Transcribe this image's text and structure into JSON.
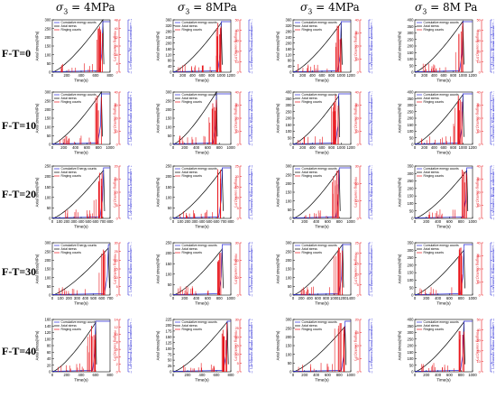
{
  "column_headers": [
    {
      "symbol": "σ",
      "sub": "3",
      "value": "= 4MPa"
    },
    {
      "symbol": "σ",
      "sub": "3",
      "value": "= 8MPa"
    },
    {
      "symbol": "σ",
      "sub": "3",
      "value": "= 4MPa"
    },
    {
      "symbol": "σ",
      "sub": "3",
      "value": "= 8M Pa"
    }
  ],
  "row_labels": [
    "F-T=0",
    "F-T=10",
    "F-T=20",
    "F-T=30",
    "F-T=40"
  ],
  "colors": {
    "stress": "#000000",
    "ringing": "#e8141a",
    "energy": "#2a2ad8",
    "axis": "#000000"
  },
  "legend_labels": {
    "energy": "Cumulative energy counts",
    "energy_alt": "Cumulative Energy counts",
    "stress": "Axial stress",
    "ringing": "Ringing counts"
  },
  "axis_labels": {
    "left": "Axial stress(MPa)",
    "right_red": "Ringing counts(10⁴)",
    "right_blue": "Cumulative energy counts(10⁵)",
    "x": "Time(s)"
  },
  "chart_data": [
    {
      "row": 0,
      "col": 0,
      "type": "line",
      "xticks": [
        "0",
        "200",
        "400",
        "600",
        "800"
      ],
      "xmax": 800,
      "ylim": [
        0,
        300
      ],
      "yticks": [
        "0",
        "50",
        "100",
        "150",
        "200",
        "250",
        "300"
      ],
      "peak_time": 700,
      "peak_stress": 300,
      "red_ticks": [
        "0",
        "8",
        "16",
        "24",
        "32",
        "40",
        "48"
      ],
      "blue_ticks": [
        "0",
        "100",
        "200",
        "300",
        "400",
        "500"
      ],
      "legend_pos": "top-left",
      "legend_variant": "energy"
    },
    {
      "row": 0,
      "col": 1,
      "type": "line",
      "xticks": [
        "0",
        "200",
        "400",
        "600",
        "800",
        "1000",
        "1200"
      ],
      "xmax": 1200,
      "ylim": [
        0,
        360
      ],
      "yticks": [
        "0",
        "40",
        "80",
        "120",
        "160",
        "200",
        "240",
        "280",
        "320",
        "360"
      ],
      "peak_time": 1000,
      "peak_stress": 340,
      "red_ticks": [
        "0",
        "10",
        "20",
        "30",
        "40",
        "50"
      ],
      "blue_ticks": [
        "0",
        "200",
        "400",
        "600",
        "800",
        "1000"
      ],
      "legend_pos": "top-left",
      "legend_variant": "energy"
    },
    {
      "row": 0,
      "col": 2,
      "type": "line",
      "xticks": [
        "0",
        "200",
        "400",
        "600",
        "800",
        "1000",
        "1200"
      ],
      "xmax": 1200,
      "ylim": [
        0,
        360
      ],
      "yticks": [
        "0",
        "40",
        "80",
        "120",
        "160",
        "200",
        "240",
        "280",
        "320",
        "360"
      ],
      "peak_time": 1000,
      "peak_stress": 340,
      "red_ticks": [
        "0",
        "10",
        "20",
        "30",
        "40"
      ],
      "blue_ticks": [
        "0",
        "200",
        "400",
        "600",
        "800",
        "1000",
        "1200"
      ],
      "legend_pos": "top-left",
      "legend_variant": "energy"
    },
    {
      "row": 0,
      "col": 3,
      "type": "line",
      "xticks": [
        "0",
        "200",
        "400",
        "600",
        "800",
        "1000",
        "1200"
      ],
      "xmax": 1200,
      "ylim": [
        0,
        400
      ],
      "yticks": [
        "0",
        "50",
        "100",
        "150",
        "200",
        "250",
        "300",
        "350",
        "400"
      ],
      "peak_time": 1000,
      "peak_stress": 390,
      "red_ticks": [
        "0",
        "10",
        "20",
        "30",
        "40",
        "50"
      ],
      "blue_ticks": [
        "0",
        "200",
        "400",
        "600",
        "800",
        "1000",
        "1200",
        "1400"
      ],
      "legend_pos": "top-left",
      "legend_variant": "energy"
    },
    {
      "row": 1,
      "col": 0,
      "type": "line",
      "xticks": [
        "0",
        "200",
        "400",
        "600",
        "800",
        "1000"
      ],
      "xmax": 1000,
      "ylim": [
        0,
        300
      ],
      "yticks": [
        "0",
        "50",
        "100",
        "150",
        "200",
        "250",
        "300"
      ],
      "peak_time": 850,
      "peak_stress": 300,
      "red_ticks": [
        "0",
        "10",
        "20",
        "30",
        "40"
      ],
      "blue_ticks": [
        "0",
        "50",
        "100",
        "150",
        "200",
        "250",
        "300",
        "350",
        "400",
        "450"
      ],
      "legend_pos": "top-left",
      "legend_variant": "energy"
    },
    {
      "row": 1,
      "col": 1,
      "type": "line",
      "xticks": [
        "0",
        "200",
        "400",
        "600",
        "800",
        "1000"
      ],
      "xmax": 1000,
      "ylim": [
        0,
        300
      ],
      "yticks": [
        "0",
        "50",
        "100",
        "150",
        "200",
        "250",
        "300"
      ],
      "peak_time": 750,
      "peak_stress": 300,
      "red_ticks": [
        "0",
        "10",
        "20",
        "30",
        "40"
      ],
      "blue_ticks": [
        "0",
        "100",
        "200",
        "300",
        "400",
        "500",
        "600"
      ],
      "legend_pos": "top-left",
      "legend_variant": "energy"
    },
    {
      "row": 1,
      "col": 2,
      "type": "line",
      "xticks": [
        "0",
        "200",
        "400",
        "600",
        "800",
        "1000",
        "1200"
      ],
      "xmax": 1200,
      "ylim": [
        0,
        400
      ],
      "yticks": [
        "0",
        "50",
        "100",
        "150",
        "200",
        "250",
        "300",
        "350",
        "400"
      ],
      "peak_time": 950,
      "peak_stress": 370,
      "red_ticks": [
        "0",
        "10",
        "20",
        "30",
        "40"
      ],
      "blue_ticks": [
        "0",
        "200",
        "400",
        "600",
        "800",
        "1000"
      ],
      "legend_pos": "top-left",
      "legend_variant": "energy"
    },
    {
      "row": 1,
      "col": 3,
      "type": "line",
      "xticks": [
        "0",
        "200",
        "400",
        "600",
        "800",
        "1000",
        "1200"
      ],
      "xmax": 1200,
      "ylim": [
        0,
        400
      ],
      "yticks": [
        "0",
        "50",
        "100",
        "150",
        "200",
        "250",
        "300",
        "350",
        "400"
      ],
      "peak_time": 1000,
      "peak_stress": 380,
      "red_ticks": [
        "0",
        "10",
        "20",
        "30",
        "40"
      ],
      "blue_ticks": [
        "0",
        "200",
        "400",
        "600",
        "800",
        "1000",
        "1200"
      ],
      "legend_pos": "top-left",
      "legend_variant": "energy"
    },
    {
      "row": 2,
      "col": 0,
      "type": "line",
      "xticks": [
        "0",
        "100",
        "200",
        "300",
        "400",
        "500",
        "600",
        "700",
        "800"
      ],
      "xmax": 800,
      "ylim": [
        0,
        250
      ],
      "yticks": [
        "0",
        "50",
        "100",
        "150",
        "200",
        "250"
      ],
      "peak_time": 710,
      "peak_stress": 230,
      "red_ticks": [
        "0",
        "5",
        "10",
        "15",
        "20"
      ],
      "blue_ticks": [
        "0",
        "50",
        "100",
        "150",
        "200",
        "250",
        "300",
        "350",
        "400"
      ],
      "legend_pos": "top-left",
      "legend_variant": "energy_alt"
    },
    {
      "row": 2,
      "col": 1,
      "type": "line",
      "xticks": [
        "0",
        "100",
        "200",
        "300",
        "400",
        "500",
        "600",
        "700",
        "800"
      ],
      "xmax": 800,
      "ylim": [
        0,
        250
      ],
      "yticks": [
        "0",
        "50",
        "100",
        "150",
        "200",
        "250"
      ],
      "peak_time": 680,
      "peak_stress": 235,
      "red_ticks": [
        "0",
        "5",
        "10",
        "15",
        "20",
        "25"
      ],
      "blue_ticks": [
        "0",
        "100",
        "200",
        "300",
        "400",
        "500",
        "600"
      ],
      "legend_pos": "top-left",
      "legend_variant": "energy"
    },
    {
      "row": 2,
      "col": 2,
      "type": "line",
      "xticks": [
        "0",
        "200",
        "400",
        "600",
        "800",
        "1000"
      ],
      "xmax": 1000,
      "ylim": [
        0,
        300
      ],
      "yticks": [
        "0",
        "50",
        "100",
        "150",
        "200",
        "250",
        "300"
      ],
      "peak_time": 800,
      "peak_stress": 280,
      "red_ticks": [
        "0",
        "10",
        "20",
        "30"
      ],
      "blue_ticks": [
        "0",
        "200",
        "400",
        "600",
        "800",
        "1000",
        "1200"
      ],
      "legend_pos": "top-left",
      "legend_variant": "energy"
    },
    {
      "row": 2,
      "col": 3,
      "type": "line",
      "xticks": [
        "0",
        "200",
        "400",
        "600",
        "800",
        "1000"
      ],
      "xmax": 1000,
      "ylim": [
        0,
        350
      ],
      "yticks": [
        "0",
        "50",
        "100",
        "150",
        "200",
        "250",
        "300",
        "350"
      ],
      "peak_time": 900,
      "peak_stress": 320,
      "red_ticks": [
        "0",
        "10",
        "20",
        "30",
        "40"
      ],
      "blue_ticks": [
        "0",
        "200",
        "400",
        "600",
        "800",
        "1000",
        "1200",
        "1400"
      ],
      "legend_pos": "top-left",
      "legend_variant": "energy"
    },
    {
      "row": 3,
      "col": 0,
      "type": "line",
      "xticks": [
        "0",
        "100",
        "200",
        "300",
        "400",
        "500",
        "600",
        "700"
      ],
      "xmax": 700,
      "ylim": [
        0,
        300
      ],
      "yticks": [
        "0",
        "50",
        "100",
        "150",
        "200",
        "250",
        "300"
      ],
      "peak_time": 680,
      "peak_stress": 270,
      "red_ticks": [
        "0",
        "5",
        "10",
        "15",
        "20",
        "25",
        "30"
      ],
      "blue_ticks": [
        "0",
        "30",
        "60",
        "90",
        "120",
        "150",
        "180"
      ],
      "legend_pos": "top-left",
      "legend_variant": "energy_alt"
    },
    {
      "row": 3,
      "col": 1,
      "type": "line",
      "xticks": [
        "0",
        "200",
        "400",
        "600",
        "800",
        "1000"
      ],
      "xmax": 1000,
      "ylim": [
        0,
        250
      ],
      "yticks": [
        "0",
        "50",
        "100",
        "150",
        "200",
        "250"
      ],
      "peak_time": 850,
      "peak_stress": 220,
      "red_ticks": [
        "0",
        "10",
        "20",
        "30"
      ],
      "blue_ticks": [
        "0",
        "100",
        "200",
        "300",
        "400",
        "500",
        "600"
      ],
      "legend_pos": "top-left",
      "legend_variant": "energy"
    },
    {
      "row": 3,
      "col": 2,
      "type": "line",
      "xticks": [
        "0",
        "200",
        "400",
        "600",
        "800",
        "1000",
        "1200",
        "1400"
      ],
      "xmax": 1400,
      "ylim": [
        0,
        300
      ],
      "yticks": [
        "0",
        "50",
        "100",
        "150",
        "200",
        "250",
        "300"
      ],
      "peak_time": 1200,
      "peak_stress": 290,
      "red_ticks": [
        "0",
        "5",
        "10",
        "15",
        "20",
        "25"
      ],
      "blue_ticks": [
        "0",
        "300",
        "600",
        "900",
        "1200",
        "1500"
      ],
      "legend_pos": "top-left",
      "legend_variant": "energy"
    },
    {
      "row": 3,
      "col": 3,
      "type": "line",
      "xticks": [
        "0",
        "200",
        "400",
        "600",
        "800",
        "1000"
      ],
      "xmax": 1000,
      "ylim": [
        0,
        350
      ],
      "yticks": [
        "0",
        "50",
        "100",
        "150",
        "200",
        "250",
        "300",
        "350"
      ],
      "peak_time": 850,
      "peak_stress": 300,
      "red_ticks": [
        "0",
        "10",
        "20",
        "30",
        "40"
      ],
      "blue_ticks": [
        "0",
        "200",
        "400",
        "600",
        "800",
        "1000",
        "1200"
      ],
      "legend_pos": "top-left",
      "legend_variant": "energy"
    },
    {
      "row": 4,
      "col": 0,
      "type": "line",
      "xticks": [
        "0",
        "200",
        "400",
        "600",
        "800"
      ],
      "xmax": 800,
      "ylim": [
        0,
        160
      ],
      "yticks": [
        "0",
        "20",
        "40",
        "60",
        "80",
        "100",
        "120",
        "140",
        "160"
      ],
      "peak_time": 600,
      "peak_stress": 150,
      "red_ticks": [
        "0",
        "2",
        "4",
        "6",
        "8",
        "10",
        "12",
        "14"
      ],
      "blue_ticks": [
        "0",
        "20",
        "40",
        "60",
        "80",
        "100",
        "120",
        "140",
        "160"
      ],
      "legend_pos": "top-left",
      "legend_variant": "energy"
    },
    {
      "row": 4,
      "col": 1,
      "type": "line",
      "xticks": [
        "0",
        "200",
        "400",
        "600",
        "800"
      ],
      "xmax": 800,
      "ylim": [
        0,
        225
      ],
      "yticks": [
        "0",
        "25",
        "50",
        "75",
        "100",
        "125",
        "150",
        "175",
        "200",
        "225"
      ],
      "peak_time": 750,
      "peak_stress": 215,
      "red_ticks": [
        "0",
        "5",
        "10",
        "15",
        "20",
        "25",
        "30"
      ],
      "blue_ticks": [
        "0",
        "50",
        "100",
        "150",
        "200",
        "250",
        "300",
        "350",
        "400",
        "450"
      ],
      "legend_pos": "top-left",
      "legend_variant": "energy"
    },
    {
      "row": 4,
      "col": 2,
      "type": "line",
      "xticks": [
        "0",
        "200",
        "400",
        "600",
        "800",
        "1000"
      ],
      "xmax": 1000,
      "ylim": [
        0,
        300
      ],
      "yticks": [
        "0",
        "50",
        "100",
        "150",
        "200",
        "250",
        "300"
      ],
      "peak_time": 900,
      "peak_stress": 260,
      "red_ticks": [
        "0",
        "5",
        "10",
        "15",
        "20"
      ],
      "blue_ticks": [
        "0",
        "100",
        "200",
        "300",
        "400",
        "500"
      ],
      "legend_pos": "top-left",
      "legend_variant": "energy"
    },
    {
      "row": 4,
      "col": 3,
      "type": "line",
      "xticks": [
        "0",
        "200",
        "400",
        "600",
        "800",
        "1000"
      ],
      "xmax": 1000,
      "ylim": [
        0,
        400
      ],
      "yticks": [
        "0",
        "50",
        "100",
        "150",
        "200",
        "250",
        "300",
        "350",
        "400"
      ],
      "peak_time": 850,
      "peak_stress": 380,
      "red_ticks": [
        "0",
        "10",
        "20",
        "30",
        "40",
        "50"
      ],
      "blue_ticks": [
        "0",
        "100",
        "200",
        "300",
        "400",
        "500",
        "600"
      ],
      "legend_pos": "top-left",
      "legend_variant": "energy"
    }
  ]
}
